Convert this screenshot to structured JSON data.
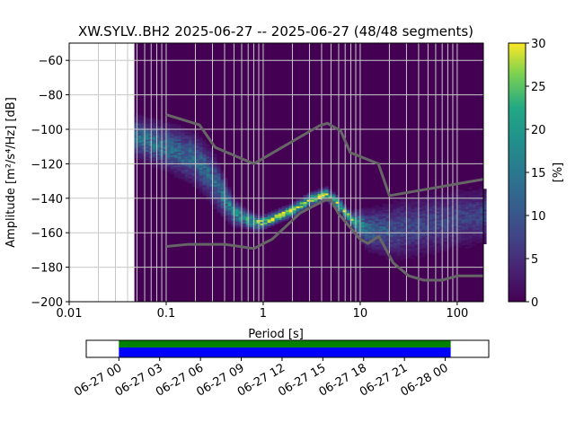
{
  "chart_data": {
    "type": "heatmap",
    "title": "XW.SYLV..BH2   2025-06-27 -- 2025-06-27  (48/48 segments)",
    "xlabel": "Period [s]",
    "ylabel": "Amplitude [m²/s⁴/Hz] [dB]",
    "xscale": "log",
    "xlim": [
      0.01,
      186
    ],
    "ylim": [
      -200,
      -50
    ],
    "xticks": [
      {
        "v": 0.01,
        "label": "0.01"
      },
      {
        "v": 0.1,
        "label": "0.1"
      },
      {
        "v": 1,
        "label": "1"
      },
      {
        "v": 10,
        "label": "10"
      },
      {
        "v": 100,
        "label": "100"
      }
    ],
    "yticks": [
      {
        "v": -60,
        "label": "−60"
      },
      {
        "v": -80,
        "label": "−80"
      },
      {
        "v": -100,
        "label": "−100"
      },
      {
        "v": -120,
        "label": "−120"
      },
      {
        "v": -140,
        "label": "−140"
      },
      {
        "v": -160,
        "label": "−160"
      },
      {
        "v": -180,
        "label": "−180"
      },
      {
        "v": -200,
        "label": "−200"
      }
    ],
    "grid": true,
    "data_period_min": 0.047,
    "mode_curve": [
      [
        0.047,
        -104
      ],
      [
        0.1,
        -110
      ],
      [
        0.2,
        -117
      ],
      [
        0.3,
        -128
      ],
      [
        0.5,
        -148
      ],
      [
        0.8,
        -154
      ],
      [
        1,
        -154
      ],
      [
        2,
        -147
      ],
      [
        3,
        -141
      ],
      [
        4.5,
        -137.5
      ],
      [
        6,
        -143
      ],
      [
        8,
        -152
      ],
      [
        12,
        -158
      ],
      [
        20,
        -159
      ],
      [
        50,
        -155
      ],
      [
        186,
        -150
      ]
    ],
    "spread_db": [
      [
        0.047,
        6
      ],
      [
        0.3,
        8
      ],
      [
        0.6,
        3
      ],
      [
        1,
        2
      ],
      [
        8,
        2
      ],
      [
        12,
        6
      ],
      [
        30,
        9
      ],
      [
        186,
        8
      ]
    ],
    "peak_percent": [
      [
        0.047,
        16
      ],
      [
        0.3,
        14
      ],
      [
        0.6,
        22
      ],
      [
        1,
        30
      ],
      [
        8,
        30
      ],
      [
        12,
        14
      ],
      [
        30,
        9
      ],
      [
        186,
        9
      ]
    ],
    "colorbar": {
      "label": "[%]",
      "range": [
        0,
        30
      ],
      "ticks": [
        {
          "v": 0,
          "label": "0"
        },
        {
          "v": 5,
          "label": "5"
        },
        {
          "v": 10,
          "label": "10"
        },
        {
          "v": 15,
          "label": "15"
        },
        {
          "v": 20,
          "label": "20"
        },
        {
          "v": 25,
          "label": "25"
        },
        {
          "v": 30,
          "label": "30"
        }
      ]
    },
    "nhnm": [
      [
        0.1,
        -91.5
      ],
      [
        0.22,
        -97.4
      ],
      [
        0.32,
        -110.5
      ],
      [
        0.8,
        -120
      ],
      [
        3.8,
        -97.9
      ],
      [
        4.6,
        -96.5
      ],
      [
        6.3,
        -101
      ],
      [
        7.9,
        -113.5
      ],
      [
        15.4,
        -120
      ],
      [
        20,
        -138.5
      ],
      [
        186,
        -129
      ]
    ],
    "nlnm": [
      [
        0.1,
        -168
      ],
      [
        0.17,
        -166.7
      ],
      [
        0.4,
        -166.7
      ],
      [
        0.8,
        -169.2
      ],
      [
        1.24,
        -163.7
      ],
      [
        2.4,
        -148.6
      ],
      [
        4.3,
        -141.1
      ],
      [
        5,
        -141.1
      ],
      [
        6,
        -149
      ],
      [
        10,
        -163.8
      ],
      [
        12,
        -166.2
      ],
      [
        15.6,
        -162.1
      ],
      [
        21.9,
        -177.5
      ],
      [
        31.6,
        -185
      ],
      [
        45,
        -187.5
      ],
      [
        70,
        -187.5
      ],
      [
        101,
        -185
      ],
      [
        186,
        -185
      ]
    ],
    "coverage": {
      "xticks": [
        "06-27 00",
        "06-27 03",
        "06-27 06",
        "06-27 09",
        "06-27 12",
        "06-27 15",
        "06-27 18",
        "06-27 21",
        "06-28 00"
      ],
      "xlim_hours": [
        -2.4,
        27.2
      ],
      "data_hours": [
        0,
        24.4
      ],
      "colors": {
        "used": "#008000",
        "available": "#0000ff"
      }
    }
  }
}
